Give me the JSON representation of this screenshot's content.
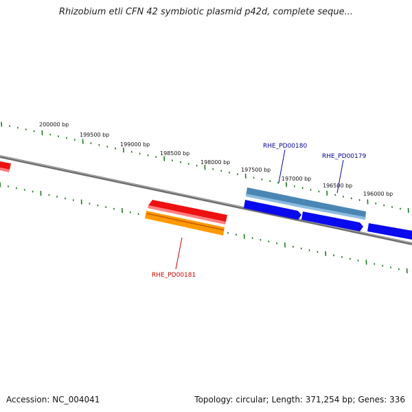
{
  "title": "Rhizobium etli CFN 42 symbiotic plasmid p42d, complete seque...",
  "footer": {
    "accession": "Accession: NC_004041",
    "summary": "Topology: circular; Length: 371,254 bp; Genes: 336"
  },
  "colors": {
    "backbone": "#808080",
    "ticks": "#1a7a1a",
    "gene_red": "#ee1111",
    "gene_orange": "#ff9a00",
    "gene_blue": "#0a0aee",
    "gene_steel": "#4a86b4",
    "label_red": "#cc0000",
    "label_blue": "#000099"
  },
  "scale_labels": [
    "200000 bp",
    "199500 bp",
    "199000 bp",
    "198500 bp",
    "198000 bp",
    "197500 bp",
    "197000 bp",
    "196500 bp",
    "196000 bp"
  ],
  "gene_labels": [
    {
      "id": "RHE_PD00181",
      "color": "label_red"
    },
    {
      "id": "RHE_PD00180",
      "color": "label_blue"
    },
    {
      "id": "RHE_PD00179",
      "color": "label_blue"
    }
  ]
}
